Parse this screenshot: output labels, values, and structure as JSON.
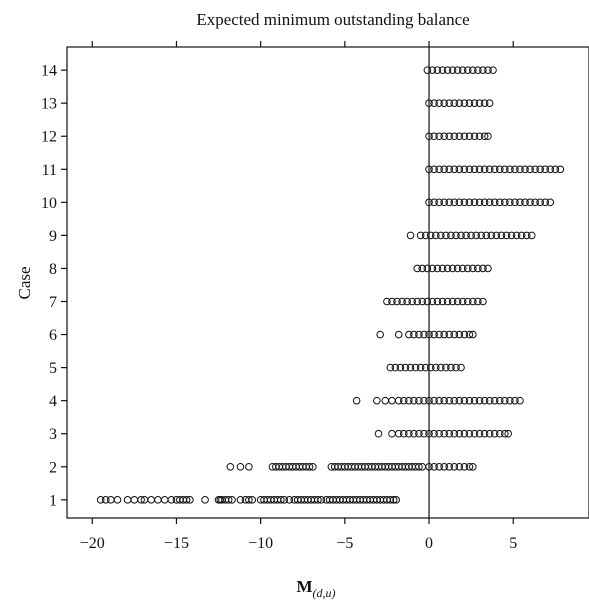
{
  "chart_data": {
    "type": "scatter",
    "title": "Expected minimum outstanding balance",
    "xlabel_main": "M",
    "xlabel_sub": "(d,u)",
    "ylabel": "Case",
    "xlim": [
      -21.5,
      9.5
    ],
    "ylim": [
      0.45,
      14.7
    ],
    "x_ticks": [
      -20,
      -15,
      -10,
      -5,
      0,
      5
    ],
    "x_tick_labels": [
      "−20",
      "−15",
      "−10",
      "−5",
      "0",
      "5"
    ],
    "y_ticks": [
      1,
      2,
      3,
      4,
      5,
      6,
      7,
      8,
      9,
      10,
      11,
      12,
      13,
      14
    ],
    "y_tick_labels": [
      "1",
      "2",
      "3",
      "4",
      "5",
      "6",
      "7",
      "8",
      "9",
      "10",
      "11",
      "12",
      "13",
      "14"
    ],
    "reference_line_x": 0,
    "marker": "open-circle",
    "grid": false,
    "legend": "none",
    "series": [
      {
        "case": 1,
        "points": [
          -19.5,
          -19.2,
          -18.9,
          -18.5,
          -17.9,
          -17.5,
          -17.1,
          -16.9,
          -16.5,
          -16.1,
          -15.7,
          -15.3,
          -15.0,
          -14.8,
          -14.6,
          -14.4,
          -14.2,
          -13.3,
          -12.5,
          -12.4,
          -12.3,
          -12.1,
          -11.9,
          -11.7,
          -11.2,
          -10.9,
          -10.7,
          -10.5,
          -10.0,
          -9.8,
          -9.6,
          -9.4,
          -9.2,
          -9.0,
          -8.8,
          -8.6,
          -8.3,
          -8.0,
          -7.8,
          -7.6,
          -7.4,
          -7.2,
          -7.0,
          -6.8,
          -6.6,
          -6.4,
          -6.1,
          -5.9,
          -5.7,
          -5.5,
          -5.3,
          -5.1,
          -4.9,
          -4.7,
          -4.5,
          -4.3,
          -4.1,
          -3.9,
          -3.7,
          -3.5,
          -3.3,
          -3.1,
          -2.9,
          -2.7,
          -2.5,
          -2.3,
          -2.1,
          -1.95
        ]
      },
      {
        "case": 2,
        "points": [
          -11.8,
          -11.2,
          -10.7,
          -9.3,
          -9.1,
          -8.9,
          -8.7,
          -8.5,
          -8.3,
          -8.1,
          -7.9,
          -7.7,
          -7.5,
          -7.3,
          -7.1,
          -6.9,
          -5.8,
          -5.6,
          -5.4,
          -5.2,
          -5.0,
          -4.8,
          -4.6,
          -4.4,
          -4.2,
          -4.0,
          -3.8,
          -3.6,
          -3.4,
          -3.2,
          -3.0,
          -2.8,
          -2.6,
          -2.4,
          -2.2,
          -2.0,
          -1.8,
          -1.6,
          -1.4,
          -1.2,
          -1.0,
          -0.8,
          -0.6,
          -0.4,
          0.0,
          0.3,
          0.6,
          0.9,
          1.2,
          1.5,
          1.8,
          2.1,
          2.4,
          2.6
        ]
      },
      {
        "case": 3,
        "points": [
          -3.0,
          -2.2,
          -1.8,
          -1.5,
          -1.2,
          -0.9,
          -0.6,
          -0.3,
          0.0,
          0.3,
          0.6,
          0.9,
          1.2,
          1.5,
          1.8,
          2.1,
          2.4,
          2.7,
          3.0,
          3.3,
          3.6,
          3.9,
          4.2,
          4.5,
          4.7
        ]
      },
      {
        "case": 4,
        "points": [
          -4.3,
          -3.1,
          -2.6,
          -2.2,
          -1.8,
          -1.5,
          -1.2,
          -0.9,
          -0.6,
          -0.3,
          0.0,
          0.3,
          0.6,
          0.9,
          1.2,
          1.5,
          1.8,
          2.1,
          2.4,
          2.7,
          3.0,
          3.3,
          3.6,
          3.9,
          4.2,
          4.5,
          4.8,
          5.1,
          5.4
        ]
      },
      {
        "case": 5,
        "points": [
          -2.3,
          -2.0,
          -1.7,
          -1.4,
          -1.1,
          -0.8,
          -0.5,
          -0.2,
          0.1,
          0.4,
          0.7,
          1.0,
          1.3,
          1.6,
          1.9
        ]
      },
      {
        "case": 6,
        "points": [
          -2.9,
          -1.8,
          -1.2,
          -0.9,
          -0.6,
          -0.3,
          0.0,
          0.3,
          0.6,
          0.9,
          1.2,
          1.5,
          1.8,
          2.1,
          2.4,
          2.6
        ]
      },
      {
        "case": 7,
        "points": [
          -2.5,
          -2.2,
          -1.9,
          -1.6,
          -1.3,
          -1.0,
          -0.7,
          -0.4,
          -0.1,
          0.2,
          0.5,
          0.8,
          1.1,
          1.4,
          1.7,
          2.0,
          2.3,
          2.6,
          2.9,
          3.2
        ]
      },
      {
        "case": 8,
        "points": [
          -0.7,
          -0.4,
          -0.1,
          0.2,
          0.5,
          0.8,
          1.1,
          1.4,
          1.7,
          2.0,
          2.3,
          2.6,
          2.9,
          3.2,
          3.5
        ]
      },
      {
        "case": 9,
        "points": [
          -1.1,
          -0.5,
          -0.2,
          0.1,
          0.4,
          0.7,
          1.0,
          1.3,
          1.6,
          1.9,
          2.2,
          2.5,
          2.8,
          3.1,
          3.4,
          3.7,
          4.0,
          4.3,
          4.6,
          4.9,
          5.2,
          5.5,
          5.8,
          6.1
        ]
      },
      {
        "case": 10,
        "points": [
          0.0,
          0.3,
          0.6,
          0.9,
          1.2,
          1.5,
          1.8,
          2.1,
          2.4,
          2.7,
          3.0,
          3.3,
          3.6,
          3.9,
          4.2,
          4.5,
          4.8,
          5.1,
          5.4,
          5.7,
          6.0,
          6.3,
          6.6,
          6.9,
          7.2
        ]
      },
      {
        "case": 11,
        "points": [
          0.0,
          0.3,
          0.6,
          0.9,
          1.2,
          1.5,
          1.8,
          2.1,
          2.4,
          2.7,
          3.0,
          3.3,
          3.6,
          3.9,
          4.2,
          4.5,
          4.8,
          5.1,
          5.4,
          5.7,
          6.0,
          6.3,
          6.6,
          6.9,
          7.2,
          7.5,
          7.8
        ]
      },
      {
        "case": 12,
        "points": [
          0.0,
          0.3,
          0.6,
          0.9,
          1.2,
          1.5,
          1.8,
          2.1,
          2.4,
          2.7,
          3.0,
          3.3,
          3.5
        ]
      },
      {
        "case": 13,
        "points": [
          0.0,
          0.3,
          0.6,
          0.9,
          1.2,
          1.5,
          1.8,
          2.1,
          2.4,
          2.7,
          3.0,
          3.3,
          3.6
        ]
      },
      {
        "case": 14,
        "points": [
          -0.1,
          0.2,
          0.5,
          0.8,
          1.1,
          1.4,
          1.7,
          2.0,
          2.3,
          2.6,
          2.9,
          3.2,
          3.5,
          3.8
        ]
      }
    ]
  }
}
